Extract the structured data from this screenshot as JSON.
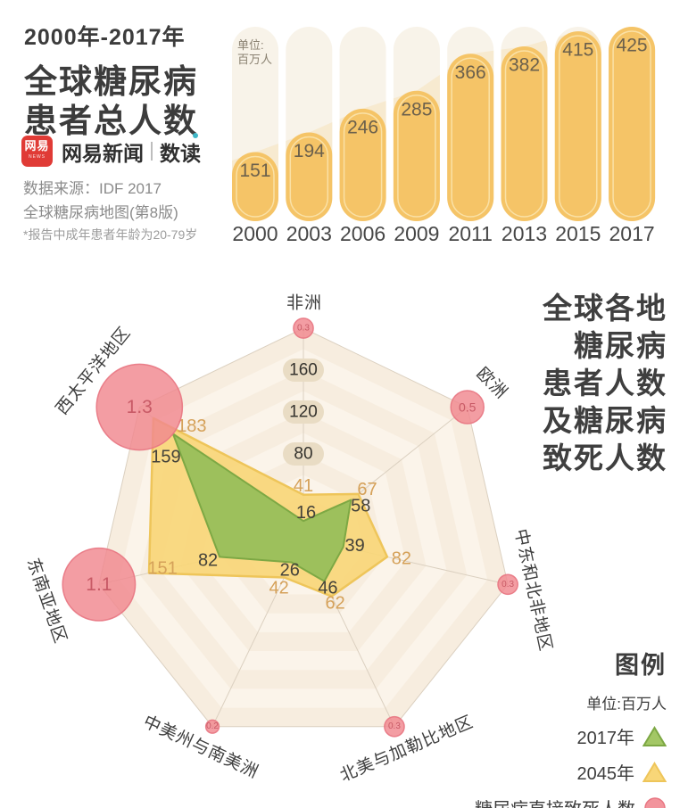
{
  "header": {
    "title_line1": "2000年-2017年",
    "title_line2": "全球糖尿病",
    "title_line3": "患者总人数",
    "logo_text": "网易",
    "logo_sub": "NEWS",
    "brand": "网易新闻",
    "brand_sub": "数读",
    "accent_color": "#3fb6c6",
    "source_line1": "数据来源：IDF 2017",
    "source_line2": "全球糖尿病地图(第8版)",
    "footnote": "*报告中成年患者年龄为20-79岁"
  },
  "radar_title": {
    "lines": [
      "全球各地",
      "糖尿病",
      "患者人数",
      "及糖尿病",
      "致死人数"
    ]
  },
  "legend": {
    "heading": "图例",
    "unit": "单位:百万人",
    "items": [
      {
        "label": "2017年",
        "marker": "triangle",
        "fill": "#a3c765",
        "stroke": "#7da844"
      },
      {
        "label": "2045年",
        "marker": "triangle",
        "fill": "#f8d678",
        "stroke": "#eec55a"
      },
      {
        "label": "糖尿病直接致死人数",
        "marker": "circle",
        "fill": "#f2949c",
        "stroke": "#e87682"
      }
    ]
  },
  "chart_data": [
    {
      "type": "bar",
      "title": "2000年-2017年全球糖尿病患者总人数",
      "unit_lines": [
        "单位:",
        "百万人"
      ],
      "categories": [
        "2000",
        "2003",
        "2006",
        "2009",
        "2011",
        "2013",
        "2015",
        "2017"
      ],
      "values": [
        151,
        194,
        246,
        285,
        366,
        382,
        415,
        425
      ],
      "ylim": [
        0,
        425
      ],
      "colors": {
        "bar": "#f5c467",
        "bar_inner_stroke": "#fae1a6",
        "track": "#f8f3e9",
        "trend_fill": "#f7ead0",
        "value_label": "#6b604c",
        "year_label": "#474747",
        "unit_label": "#8a8171"
      }
    },
    {
      "type": "radar",
      "title": "全球各地糖尿病患者人数及糖尿病致死人数",
      "unit": "百万人",
      "axis_max": 200,
      "ring_step": 20,
      "tick_values": [
        80,
        120,
        160
      ],
      "axes": [
        "非洲",
        "欧洲",
        "中东和北非地区",
        "北美与加勒比地区",
        "中美州与南美洲",
        "东南亚地区",
        "西太平洋地区"
      ],
      "series": [
        {
          "name": "2017年",
          "values": [
            16,
            58,
            39,
            46,
            26,
            82,
            159
          ],
          "fill": "#99be5b",
          "stroke": "#7da844",
          "label_color": "#44423a"
        },
        {
          "name": "2045年",
          "values": [
            41,
            67,
            82,
            62,
            42,
            151,
            183
          ],
          "fill": "#f8d678",
          "stroke": "#eec55a",
          "label_color": "#d5a159"
        }
      ],
      "deaths": {
        "name": "糖尿病直接致死人数",
        "values": [
          0.3,
          0.5,
          0.3,
          0.3,
          0.2,
          1.1,
          1.3
        ],
        "fill": "#f0888f",
        "stroke": "#e87682",
        "label_color": "#c85a66"
      },
      "grid": {
        "band_a": "#f7eddf",
        "band_b": "#fbf4ea",
        "axis_line": "#dbd0c0",
        "tick_pill": "#e9dcc4",
        "tick_text": "#35332e",
        "region_label": "#3e3e3e"
      }
    }
  ]
}
